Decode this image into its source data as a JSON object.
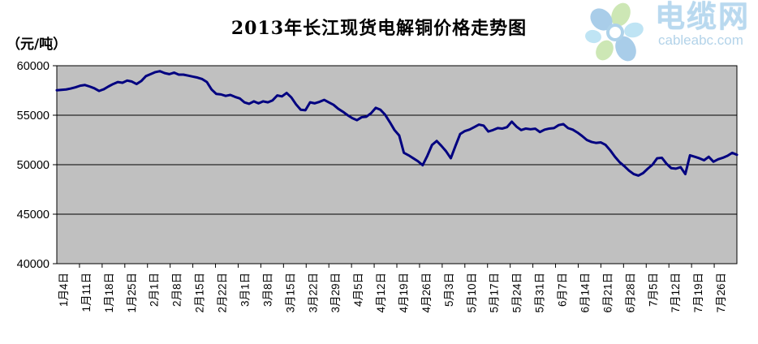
{
  "logo": {
    "brand": "电缆网",
    "domain": "cableabc.com"
  },
  "chart_data": {
    "type": "line",
    "title": "2013年长江现货电解铜价格走势图",
    "unit_label": "（元/吨）",
    "ylabel": "元/吨",
    "xlabel": "",
    "ylim": [
      40000,
      60000
    ],
    "y_ticks": [
      60000,
      55000,
      50000,
      45000,
      40000
    ],
    "grid": true,
    "legend": "none",
    "plot_bg": "#c0c0c0",
    "line_color": "#000080",
    "x_labels": [
      "1月4日",
      "1月11日",
      "1月18日",
      "1月25日",
      "2月1日",
      "2月8日",
      "2月15日",
      "2月22日",
      "3月1日",
      "3月8日",
      "3月15日",
      "3月22日",
      "3月29日",
      "4月5日",
      "4月12日",
      "4月19日",
      "4月26日",
      "5月3日",
      "5月10日",
      "5月17日",
      "5月24日",
      "5月31日",
      "6月7日",
      "6月14日",
      "6月21日",
      "6月28日",
      "7月5日",
      "7月12日",
      "7月19日",
      "7月26日"
    ],
    "values": [
      57520,
      57560,
      57600,
      57700,
      57820,
      57980,
      58050,
      57900,
      57720,
      57450,
      57620,
      57900,
      58150,
      58350,
      58280,
      58500,
      58400,
      58150,
      58450,
      58950,
      59150,
      59350,
      59450,
      59250,
      59150,
      59300,
      59100,
      59100,
      59000,
      58900,
      58800,
      58650,
      58350,
      57600,
      57150,
      57100,
      56950,
      57050,
      56850,
      56700,
      56300,
      56150,
      56400,
      56200,
      56400,
      56300,
      56500,
      57000,
      56900,
      57250,
      56800,
      56100,
      55550,
      55500,
      56300,
      56200,
      56350,
      56550,
      56300,
      56050,
      55650,
      55350,
      55000,
      54700,
      54500,
      54800,
      54850,
      55200,
      55750,
      55550,
      55050,
      54300,
      53500,
      52950,
      51200,
      50950,
      50650,
      50350,
      49950,
      50900,
      52000,
      52400,
      51900,
      51350,
      50650,
      51900,
      53100,
      53400,
      53550,
      53800,
      54050,
      53950,
      53350,
      53500,
      53700,
      53650,
      53800,
      54350,
      53850,
      53500,
      53650,
      53580,
      53640,
      53300,
      53540,
      53650,
      53700,
      54000,
      54100,
      53700,
      53540,
      53250,
      52900,
      52500,
      52300,
      52200,
      52250,
      52000,
      51450,
      50800,
      50250,
      49850,
      49400,
      49050,
      48900,
      49150,
      49600,
      50000,
      50650,
      50700,
      50100,
      49650,
      49600,
      49750,
      49050,
      50950,
      50800,
      50650,
      50450,
      50800,
      50300,
      50550,
      50700,
      50900,
      51200,
      51000
    ]
  }
}
